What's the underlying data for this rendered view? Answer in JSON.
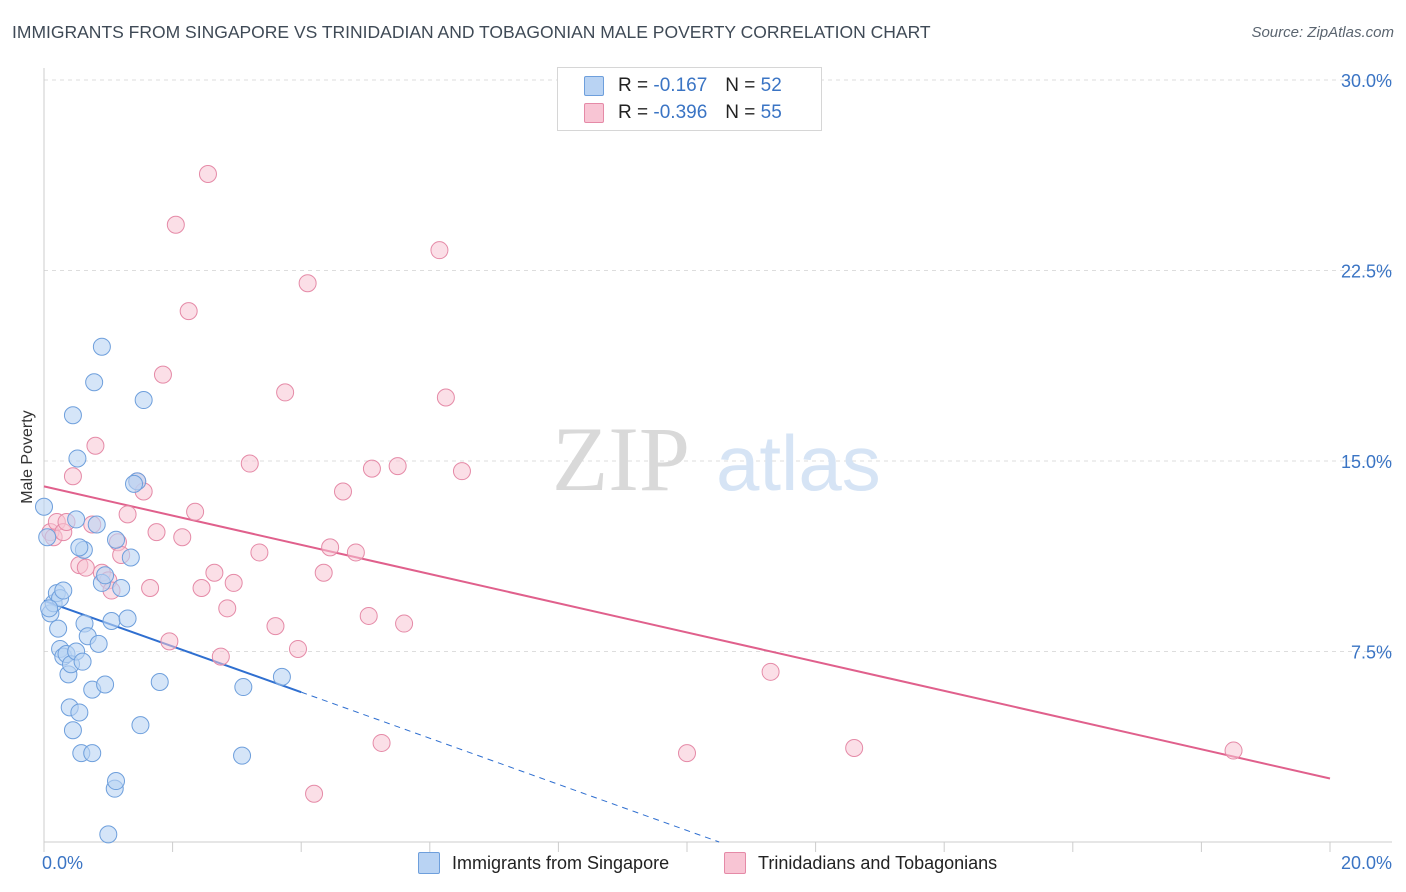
{
  "title": "IMMIGRANTS FROM SINGAPORE VS TRINIDADIAN AND TOBAGONIAN MALE POVERTY CORRELATION CHART",
  "source": "Source: ZipAtlas.com",
  "watermark": {
    "zip": "ZIP",
    "atlas": "atlas"
  },
  "legend": {
    "r_label": "R =",
    "n_label": "N =",
    "rows": [
      {
        "r": "-0.167",
        "n": "52"
      },
      {
        "r": "-0.396",
        "n": "55"
      }
    ]
  },
  "colors": {
    "blue_fill": "#b9d3f3",
    "blue_stroke": "#6e9fdc",
    "blue_line": "#2f6fd0",
    "pink_fill": "#f8c5d4",
    "pink_stroke": "#e58aa7",
    "pink_line": "#e0608c",
    "tick_text": "#3a74c4",
    "grid": "#dddddd"
  },
  "chart_data": {
    "type": "scatter",
    "title": "IMMIGRANTS FROM SINGAPORE VS TRINIDADIAN AND TOBAGONIAN MALE POVERTY CORRELATION CHART",
    "xlabel": "",
    "ylabel": "Male Poverty",
    "xlim": [
      0,
      20
    ],
    "ylim": [
      0,
      30
    ],
    "x_tick_labels": [
      "0.0%",
      "20.0%"
    ],
    "y_ticks": [
      7.5,
      15.0,
      22.5,
      30.0
    ],
    "y_tick_labels": [
      "7.5%",
      "15.0%",
      "22.5%",
      "30.0%"
    ],
    "grid": "horizontal dashed",
    "legend_position": "bottom",
    "series": [
      {
        "name": "Immigrants from Singapore",
        "color": "#b9d3f3",
        "points": [
          [
            0.0,
            13.2
          ],
          [
            0.05,
            12.0
          ],
          [
            0.1,
            9.0
          ],
          [
            0.15,
            9.4
          ],
          [
            0.2,
            9.8
          ],
          [
            0.22,
            8.4
          ],
          [
            0.25,
            9.6
          ],
          [
            0.25,
            7.6
          ],
          [
            0.3,
            7.3
          ],
          [
            0.35,
            7.4
          ],
          [
            0.38,
            6.6
          ],
          [
            0.4,
            5.3
          ],
          [
            0.42,
            7.0
          ],
          [
            0.45,
            4.4
          ],
          [
            0.45,
            16.8
          ],
          [
            0.5,
            12.7
          ],
          [
            0.5,
            7.5
          ],
          [
            0.52,
            15.1
          ],
          [
            0.55,
            5.1
          ],
          [
            0.58,
            3.5
          ],
          [
            0.6,
            7.1
          ],
          [
            0.62,
            11.5
          ],
          [
            0.63,
            8.6
          ],
          [
            0.68,
            8.1
          ],
          [
            0.75,
            3.5
          ],
          [
            0.75,
            6.0
          ],
          [
            0.78,
            18.1
          ],
          [
            0.82,
            12.5
          ],
          [
            0.85,
            7.8
          ],
          [
            0.9,
            19.5
          ],
          [
            0.9,
            10.2
          ],
          [
            0.95,
            10.5
          ],
          [
            0.95,
            6.2
          ],
          [
            1.0,
            0.3
          ],
          [
            1.05,
            8.7
          ],
          [
            1.1,
            2.1
          ],
          [
            1.12,
            11.9
          ],
          [
            1.12,
            2.4
          ],
          [
            1.2,
            10.0
          ],
          [
            1.3,
            8.8
          ],
          [
            1.35,
            11.2
          ],
          [
            1.45,
            14.2
          ],
          [
            1.5,
            4.6
          ],
          [
            1.55,
            17.4
          ],
          [
            1.8,
            6.3
          ],
          [
            3.1,
            6.1
          ],
          [
            3.7,
            6.5
          ],
          [
            3.08,
            3.4
          ],
          [
            0.08,
            9.2
          ],
          [
            0.3,
            9.9
          ],
          [
            0.55,
            11.6
          ],
          [
            1.4,
            14.1
          ]
        ],
        "trend": {
          "x0": 0.0,
          "y0": 9.5,
          "x1_solid": 4.0,
          "y1_solid": 5.9,
          "x1_dashed": 10.5,
          "y1_dashed": 0.0
        }
      },
      {
        "name": "Trinidadians and Tobagonians",
        "color": "#f8c5d4",
        "points": [
          [
            0.1,
            12.2
          ],
          [
            0.15,
            12.0
          ],
          [
            0.2,
            12.6
          ],
          [
            0.3,
            12.2
          ],
          [
            0.35,
            12.6
          ],
          [
            0.45,
            14.4
          ],
          [
            0.55,
            10.9
          ],
          [
            0.65,
            10.8
          ],
          [
            0.75,
            12.5
          ],
          [
            0.8,
            15.6
          ],
          [
            0.9,
            10.6
          ],
          [
            1.0,
            10.3
          ],
          [
            1.05,
            9.9
          ],
          [
            1.15,
            11.8
          ],
          [
            1.2,
            11.3
          ],
          [
            1.3,
            12.9
          ],
          [
            1.45,
            14.2
          ],
          [
            1.55,
            13.8
          ],
          [
            1.65,
            10.0
          ],
          [
            1.75,
            12.2
          ],
          [
            1.85,
            18.4
          ],
          [
            1.95,
            7.9
          ],
          [
            2.05,
            24.3
          ],
          [
            2.15,
            12.0
          ],
          [
            2.25,
            20.9
          ],
          [
            2.35,
            13.0
          ],
          [
            2.45,
            10.0
          ],
          [
            2.55,
            26.3
          ],
          [
            2.65,
            10.6
          ],
          [
            2.75,
            7.3
          ],
          [
            2.85,
            9.2
          ],
          [
            2.95,
            10.2
          ],
          [
            3.2,
            14.9
          ],
          [
            3.35,
            11.4
          ],
          [
            3.6,
            8.5
          ],
          [
            3.75,
            17.7
          ],
          [
            3.95,
            7.6
          ],
          [
            4.1,
            22.0
          ],
          [
            4.2,
            1.9
          ],
          [
            4.35,
            10.6
          ],
          [
            4.45,
            11.6
          ],
          [
            4.65,
            13.8
          ],
          [
            4.85,
            11.4
          ],
          [
            5.05,
            8.9
          ],
          [
            5.1,
            14.7
          ],
          [
            5.25,
            3.9
          ],
          [
            5.5,
            14.8
          ],
          [
            5.6,
            8.6
          ],
          [
            6.15,
            23.3
          ],
          [
            6.25,
            17.5
          ],
          [
            6.5,
            14.6
          ],
          [
            10.0,
            3.5
          ],
          [
            11.3,
            6.7
          ],
          [
            12.6,
            3.7
          ],
          [
            18.5,
            3.6
          ]
        ],
        "trend": {
          "x0": 0.0,
          "y0": 14.0,
          "x1": 20.0,
          "y1": 2.5
        }
      }
    ]
  },
  "bottom_legend": [
    "Immigrants from Singapore",
    "Trinidadians and Tobagonians"
  ]
}
